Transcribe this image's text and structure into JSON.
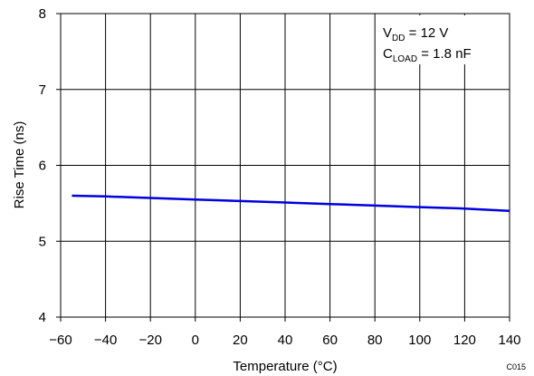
{
  "chart_data": {
    "type": "line",
    "xlabel": "Temperature (°C)",
    "ylabel": "Rise Time (ns)",
    "xlim": [
      -60,
      140
    ],
    "ylim": [
      4,
      8
    ],
    "x_ticks": [
      -60,
      -40,
      -20,
      0,
      20,
      40,
      60,
      80,
      100,
      120,
      140
    ],
    "x_tick_labels": [
      "−60",
      "−40",
      "−20",
      "0",
      "20",
      "40",
      "60",
      "80",
      "100",
      "120",
      "140"
    ],
    "y_ticks": [
      4,
      5,
      6,
      7,
      8
    ],
    "y_tick_labels": [
      "4",
      "5",
      "6",
      "7",
      "8"
    ],
    "grid": true,
    "series": [
      {
        "color": "#0000dd",
        "x": [
          -55,
          -40,
          -20,
          0,
          20,
          40,
          60,
          80,
          100,
          120,
          140
        ],
        "y": [
          5.6,
          5.59,
          5.57,
          5.55,
          5.53,
          5.51,
          5.49,
          5.47,
          5.45,
          5.43,
          5.4
        ]
      }
    ],
    "annotation": {
      "line1": {
        "base": "V",
        "sub": "DD",
        "rest": " = 12 V"
      },
      "line2": {
        "base": "C",
        "sub": "LOAD",
        "rest": " = 1.8 nF"
      }
    },
    "figure_code": "C015"
  }
}
